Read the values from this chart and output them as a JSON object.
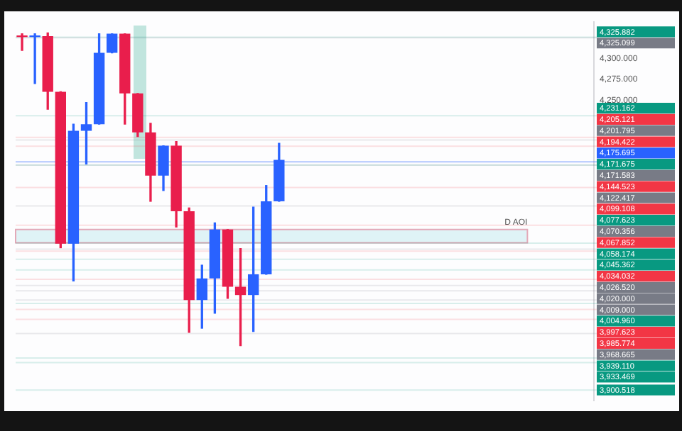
{
  "chart_data": {
    "type": "candlestick",
    "categories": [
      null,
      null,
      null,
      null,
      null,
      null,
      null,
      null,
      null,
      null,
      null,
      null,
      null,
      null,
      null,
      null,
      null,
      null,
      null,
      null,
      null,
      null,
      null,
      null,
      null,
      null,
      null,
      null,
      null,
      null,
      null,
      null,
      null,
      null,
      null,
      null,
      null,
      null,
      null,
      null,
      null,
      null,
      null,
      null,
      null
    ],
    "ohlc": [
      [
        4328,
        4330,
        4310,
        4326
      ],
      [
        4326,
        4330,
        4270,
        4328
      ],
      [
        4327,
        4331,
        4239,
        4260
      ],
      [
        4260,
        4260,
        4072,
        4077
      ],
      [
        4077,
        4221,
        4032,
        4213
      ],
      [
        4213,
        4247,
        4173,
        4221
      ],
      [
        4221,
        4330,
        4221,
        4307
      ],
      [
        4307,
        4330,
        4307,
        4330
      ],
      [
        4330,
        4330,
        4221,
        4258
      ],
      [
        4258,
        4258,
        4206,
        4211
      ],
      [
        4211,
        4222,
        4128,
        4159
      ],
      [
        4159,
        4195,
        4141,
        4195
      ],
      [
        4195,
        4200,
        4097,
        4116
      ],
      [
        4116,
        4120,
        3970,
        4009
      ],
      [
        4009,
        4051,
        3975,
        4035
      ],
      [
        4035,
        4102,
        3993,
        4094
      ],
      [
        4094,
        4094,
        4011,
        4025
      ],
      [
        4025,
        4071,
        3954,
        4015
      ],
      [
        4015,
        4121,
        3971,
        4040
      ],
      [
        4040,
        4147,
        4040,
        4128
      ],
      [
        4128,
        4198,
        4128,
        4178
      ],
      null,
      null,
      null,
      null,
      null,
      null,
      null,
      null,
      null,
      null,
      null,
      null,
      null,
      null,
      null,
      null,
      null,
      null,
      null,
      null,
      null,
      null,
      null,
      null
    ],
    "colors": [
      "#e91e4c",
      "#2962ff",
      "#e91e4c",
      "#e91e4c",
      "#2962ff",
      "#2962ff",
      "#2962ff",
      "#2962ff",
      "#e91e4c",
      "#e91e4c",
      "#e91e4c",
      "#2962ff",
      "#e91e4c",
      "#e91e4c",
      "#2962ff",
      "#2962ff",
      "#e91e4c",
      "#e91e4c",
      "#2962ff",
      "#2962ff",
      "#2962ff",
      null,
      null,
      null,
      null,
      null,
      null,
      null,
      null,
      null,
      null,
      null,
      null,
      null,
      null,
      null,
      null,
      null,
      null,
      null,
      null,
      null,
      null,
      null,
      null
    ],
    "ylim": [
      3888,
      4344
    ],
    "yticks": [
      {
        "value": 4250,
        "label": "4,250.000"
      },
      {
        "value": 4275,
        "label": "4,275.000"
      },
      {
        "value": 4300,
        "label": "4,300.000"
      }
    ],
    "tick_labels": "y",
    "grid": false,
    "legend": false,
    "bands": [
      {
        "axis": "y",
        "from": 4078,
        "to": 4094,
        "label": "D AOI",
        "color": "#dff3f6"
      }
    ],
    "ref_lines": [
      {
        "axis": "y",
        "value": 4325.882,
        "label": "4,325.882",
        "color": "#089981"
      },
      {
        "axis": "y",
        "value": 4325.099,
        "label": "4,325.099",
        "color": "#787b86"
      },
      {
        "axis": "y",
        "value": 4231.162,
        "label": "4,231.162",
        "color": "#089981"
      },
      {
        "axis": "y",
        "value": 4205.121,
        "label": "4,205.121",
        "color": "#f23645"
      },
      {
        "axis": "y",
        "value": 4201.795,
        "label": "4,201.795",
        "color": "#787b86"
      },
      {
        "axis": "y",
        "value": 4194.422,
        "label": "4,194.422",
        "color": "#f23645"
      },
      {
        "axis": "y",
        "value": 4175.695,
        "label": "4,175.695",
        "color": "#2962ff",
        "line_style": "solid"
      },
      {
        "axis": "y",
        "value": 4171.675,
        "label": "4,171.675",
        "color": "#089981"
      },
      {
        "axis": "y",
        "value": 4171.583,
        "label": "4,171.583",
        "color": "#787b86"
      },
      {
        "axis": "y",
        "value": 4144.523,
        "label": "4,144.523",
        "color": "#f23645"
      },
      {
        "axis": "y",
        "value": 4122.417,
        "label": "4,122.417",
        "color": "#787b86"
      },
      {
        "axis": "y",
        "value": 4099.108,
        "label": "4,099.108",
        "color": "#f23645"
      },
      {
        "axis": "y",
        "value": 4077.623,
        "label": "4,077.623",
        "color": "#089981"
      },
      {
        "axis": "y",
        "value": 4070.356,
        "label": "4,070.356",
        "color": "#787b86"
      },
      {
        "axis": "y",
        "value": 4067.852,
        "label": "4,067.852",
        "color": "#f23645"
      },
      {
        "axis": "y",
        "value": 4058.174,
        "label": "4,058.174",
        "color": "#089981"
      },
      {
        "axis": "y",
        "value": 4045.362,
        "label": "4,045.362",
        "color": "#089981"
      },
      {
        "axis": "y",
        "value": 4034.032,
        "label": "4,034.032",
        "color": "#f23645"
      },
      {
        "axis": "y",
        "value": 4026.52,
        "label": "4,026.520",
        "color": "#787b86"
      },
      {
        "axis": "y",
        "value": 4020,
        "label": "4,020.000",
        "color": "#787b86"
      },
      {
        "axis": "y",
        "value": 4009,
        "label": "4,009.000",
        "color": "#787b86"
      },
      {
        "axis": "y",
        "value": 4004.96,
        "label": "4,004.960",
        "color": "#089981"
      },
      {
        "axis": "y",
        "value": 3997.623,
        "label": "3,997.623",
        "color": "#f23645"
      },
      {
        "axis": "y",
        "value": 3985.774,
        "label": "3,985.774",
        "color": "#f23645"
      },
      {
        "axis": "y",
        "value": 3968.665,
        "label": "3,968.665",
        "color": "#787b86"
      },
      {
        "axis": "y",
        "value": 3939.11,
        "label": "3,939.110",
        "color": "#089981"
      },
      {
        "axis": "y",
        "value": 3933.469,
        "label": "3,933.469",
        "color": "#089981"
      },
      {
        "axis": "y",
        "value": 3900.518,
        "label": "3,900.518",
        "color": "#089981"
      }
    ]
  }
}
